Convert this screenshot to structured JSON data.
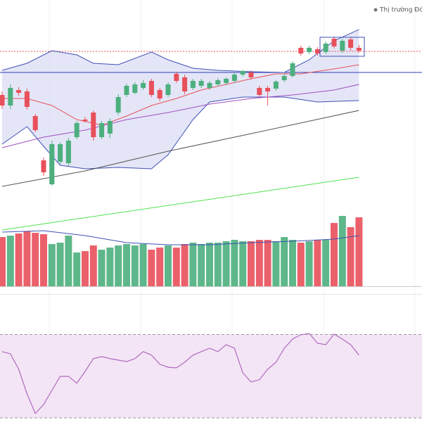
{
  "chart_data": [
    {
      "type": "candlestick",
      "label": "Thị trường Đón",
      "up_color": "#4caf7d",
      "down_color": "#e8505b",
      "ylim": [
        0,
        410
      ],
      "open": [
        275,
        260,
        282,
        280,
        245,
        182,
        148,
        180,
        178,
        215,
        240,
        250,
        215,
        220,
        250,
        275,
        278,
        285,
        295,
        282,
        275,
        305,
        300,
        285,
        288,
        285,
        290,
        292,
        295,
        304,
        307,
        285,
        285,
        284,
        296,
        302,
        342,
        336,
        340,
        336,
        355,
        338,
        354,
        342
      ],
      "high": [
        280,
        290,
        286,
        284,
        248,
        186,
        210,
        208,
        214,
        238,
        244,
        253,
        238,
        242,
        276,
        291,
        293,
        296,
        298,
        285,
        293,
        308,
        304,
        298,
        298,
        295,
        299,
        300,
        307,
        311,
        310,
        288,
        288,
        296,
        305,
        323,
        345,
        345,
        343,
        351,
        358,
        355,
        357,
        346
      ],
      "low": [
        255,
        255,
        274,
        254,
        222,
        160,
        146,
        176,
        174,
        212,
        236,
        210,
        212,
        214,
        246,
        272,
        276,
        282,
        272,
        266,
        272,
        292,
        276,
        282,
        285,
        282,
        287,
        289,
        292,
        301,
        297,
        272,
        260,
        281,
        293,
        300,
        331,
        333,
        331,
        333,
        341,
        335,
        338,
        335
      ],
      "close": [
        260,
        285,
        278,
        258,
        225,
        165,
        205,
        205,
        210,
        235,
        238,
        215,
        235,
        238,
        272,
        288,
        290,
        292,
        275,
        270,
        290,
        295,
        280,
        295,
        295,
        292,
        296,
        298,
        304,
        309,
        300,
        275,
        280,
        294,
        302,
        320,
        334,
        342,
        334,
        348,
        344,
        352,
        342,
        338
      ],
      "lines": [
        {
          "color": "#3f51b5",
          "x": [
            0,
            3,
            6,
            9,
            11,
            14,
            18,
            20,
            23,
            26,
            30,
            34,
            37,
            40,
            43
          ],
          "values": [
            310,
            320,
            338,
            332,
            320,
            318,
            336,
            325,
            313,
            310,
            308,
            307,
            325,
            352,
            368
          ]
        },
        {
          "color": "#3f51b5",
          "x": [
            0,
            3,
            5,
            7,
            10,
            14,
            18,
            20,
            23,
            25,
            29,
            34,
            38,
            43
          ],
          "values": [
            205,
            230,
            202,
            175,
            170,
            172,
            170,
            190,
            240,
            265,
            272,
            272,
            265,
            267
          ]
        },
        {
          "color": "#e8505b",
          "x": [
            0,
            3,
            6,
            9,
            12,
            15,
            18,
            21,
            24,
            27,
            30,
            33,
            36,
            40,
            43
          ],
          "values": [
            270,
            270,
            260,
            240,
            232,
            245,
            260,
            270,
            282,
            290,
            298,
            305,
            305,
            312,
            318
          ]
        },
        {
          "color": "#a04fc0",
          "x": [
            0,
            5,
            10,
            15,
            20,
            25,
            30,
            35,
            40,
            43
          ],
          "values": [
            200,
            215,
            225,
            240,
            250,
            262,
            270,
            275,
            282,
            290
          ]
        },
        {
          "color": "#555555",
          "x": [
            0,
            10,
            20,
            30,
            43
          ],
          "values": [
            145,
            167,
            195,
            220,
            253
          ]
        },
        {
          "color": "#4ee44e",
          "x": [
            0,
            43
          ],
          "values": [
            83,
            158
          ]
        }
      ],
      "band_color": "#dde0f5",
      "hlines": [
        {
          "value": 307,
          "color": "#2b3fb5",
          "style": "solid"
        },
        {
          "value": 337,
          "color": "#e8505b",
          "style": "dotted"
        }
      ]
    },
    {
      "type": "bar",
      "ylim": [
        0,
        407
      ],
      "values": [
        70,
        72,
        75,
        78,
        76,
        74,
        60,
        62,
        72,
        48,
        50,
        58,
        52,
        55,
        58,
        60,
        58,
        60,
        52,
        55,
        58,
        55,
        60,
        62,
        60,
        62,
        62,
        64,
        66,
        64,
        64,
        66,
        66,
        64,
        70,
        66,
        62,
        64,
        66,
        66,
        90,
        100,
        84,
        98
      ],
      "average": {
        "color": "#3f51b5",
        "x": [
          0,
          5,
          10,
          15,
          20,
          25,
          30,
          35,
          40,
          43
        ],
        "values": [
          77,
          79,
          72,
          62,
          59,
          59,
          62,
          64,
          67,
          72
        ]
      }
    },
    {
      "type": "line",
      "color": "#b06ac0",
      "ylim": [
        28,
        82
      ],
      "levels": [
        70,
        30
      ],
      "band_color": "#f3e5f5",
      "values": [
        61.8,
        60.7,
        53.3,
        41.5,
        32.1,
        36.4,
        43.2,
        49.9,
        49.9,
        46.6,
        52.3,
        58.4,
        59.4,
        58.4,
        57.7,
        57.0,
        58.4,
        61.8,
        60.1,
        55.7,
        54.3,
        54.0,
        56.7,
        60.1,
        61.8,
        63.4,
        61.8,
        65.1,
        63.4,
        51.6,
        47.2,
        48.3,
        53.3,
        56.7,
        63.4,
        67.8,
        69.9,
        70.5,
        65.8,
        65.1,
        70.2,
        67.8,
        65.1,
        60.1
      ]
    }
  ]
}
